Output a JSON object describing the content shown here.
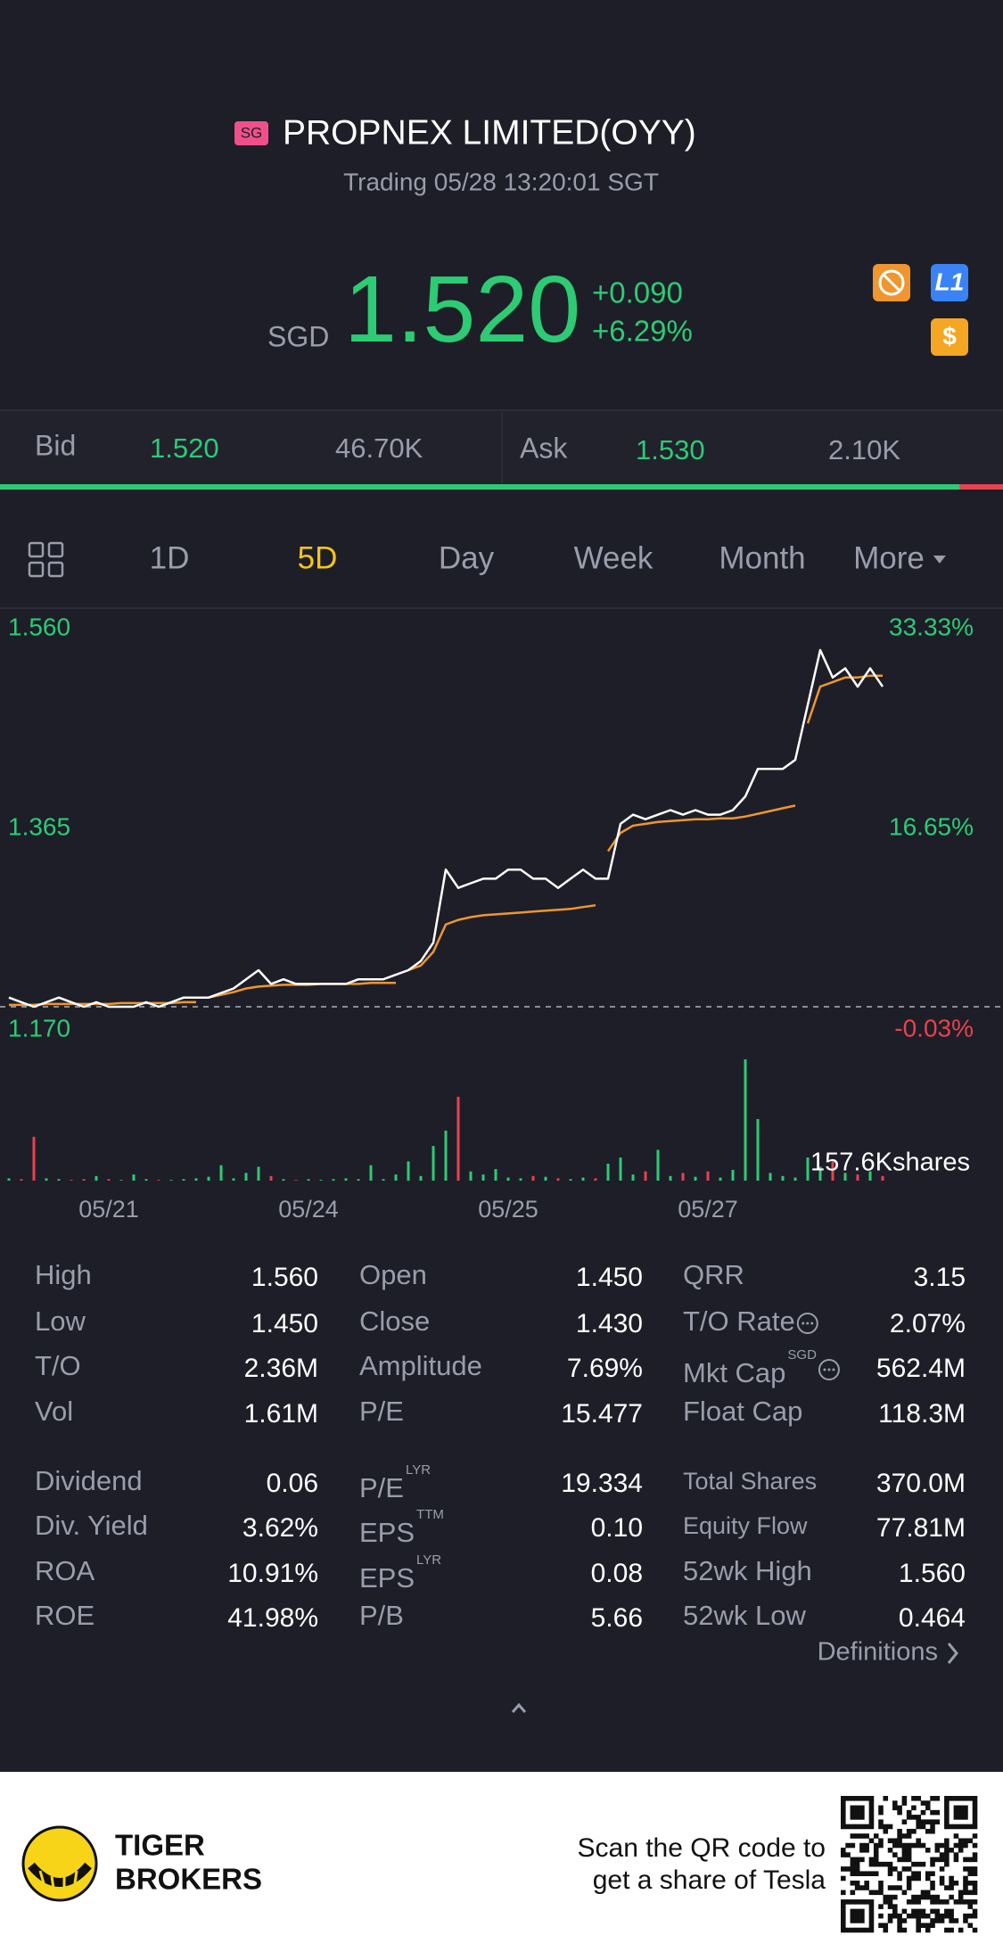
{
  "header": {
    "market": "SG",
    "title": "PROPNEX LIMITED(OYY)",
    "status": "Trading 05/28 13:20:01 SGT"
  },
  "quote": {
    "currency": "SGD",
    "price": "1.520",
    "change": "+0.090",
    "change_pct": "+6.29%"
  },
  "order_book": {
    "bid_label": "Bid",
    "bid": "1.520",
    "bid_size": "46.70K",
    "ask_label": "Ask",
    "ask": "1.530",
    "ask_size": "2.10K"
  },
  "tabs": [
    "1D",
    "5D",
    "Day",
    "Week",
    "Month",
    "More"
  ],
  "active_tab": 1,
  "chart": {
    "ylim": [
      1.17,
      1.56
    ],
    "price_ticks": [
      {
        "value": 1.56,
        "label": "1.560"
      },
      {
        "value": 1.365,
        "label": "1.365"
      },
      {
        "value": 1.17,
        "label": "1.170"
      }
    ],
    "pct_labels": [
      "33.33%",
      "16.65%",
      "-0.03%"
    ],
    "volume_label": "157.6Kshares",
    "days": [
      {
        "date": "05/21",
        "price": [
          1.18,
          1.175,
          1.17,
          1.175,
          1.18,
          1.175,
          1.17,
          1.175,
          1.17,
          1.17,
          1.17,
          1.175,
          1.17,
          1.175,
          1.18,
          1.18
        ],
        "avg": [
          1.172,
          1.172,
          1.172,
          1.173,
          1.173,
          1.173,
          1.173,
          1.173,
          1.173,
          1.174,
          1.174,
          1.174,
          1.174,
          1.174,
          1.175,
          1.175
        ],
        "volume": [
          3,
          2,
          57,
          3,
          2,
          1,
          2,
          6,
          2,
          1,
          8,
          2,
          1,
          1,
          2,
          3
        ]
      },
      {
        "date": "05/24",
        "price": [
          1.18,
          1.185,
          1.19,
          1.2,
          1.21,
          1.195,
          1.2,
          1.195,
          1.195,
          1.195,
          1.195,
          1.195,
          1.2,
          1.2,
          1.2,
          1.205
        ],
        "avg": [
          1.18,
          1.183,
          1.186,
          1.19,
          1.192,
          1.193,
          1.194,
          1.194,
          1.194,
          1.195,
          1.195,
          1.195,
          1.195,
          1.196,
          1.196,
          1.196
        ],
        "volume": [
          5,
          20,
          3,
          10,
          18,
          6,
          2,
          1,
          2,
          1,
          2,
          3,
          2,
          20,
          2,
          8
        ]
      },
      {
        "date": "05/25",
        "price": [
          1.21,
          1.22,
          1.24,
          1.32,
          1.3,
          1.305,
          1.31,
          1.31,
          1.32,
          1.32,
          1.31,
          1.31,
          1.3,
          1.31,
          1.32,
          1.31
        ],
        "avg": [
          1.21,
          1.215,
          1.23,
          1.26,
          1.265,
          1.268,
          1.27,
          1.271,
          1.272,
          1.273,
          1.274,
          1.275,
          1.276,
          1.277,
          1.279,
          1.281
        ],
        "volume": [
          25,
          6,
          45,
          65,
          109,
          12,
          8,
          15,
          4,
          3,
          6,
          5,
          3,
          2,
          4,
          3
        ]
      },
      {
        "date": "05/27",
        "price": [
          1.31,
          1.37,
          1.38,
          1.375,
          1.38,
          1.385,
          1.38,
          1.385,
          1.38,
          1.38,
          1.385,
          1.4,
          1.43,
          1.43,
          1.43,
          1.44
        ],
        "avg": [
          1.34,
          1.36,
          1.368,
          1.37,
          1.372,
          1.373,
          1.374,
          1.375,
          1.375,
          1.376,
          1.376,
          1.378,
          1.381,
          1.384,
          1.387,
          1.39
        ],
        "volume": [
          22,
          30,
          8,
          12,
          40,
          6,
          10,
          5,
          12,
          4,
          14,
          157.6,
          80,
          10,
          6,
          4
        ]
      },
      {
        "price": [
          1.5,
          1.56,
          1.53,
          1.54,
          1.52,
          1.54,
          1.52
        ],
        "avg": [
          1.48,
          1.52,
          1.525,
          1.53,
          1.53,
          1.532,
          1.532
        ],
        "volume": [
          30,
          18,
          25,
          10,
          8,
          12,
          6
        ]
      }
    ]
  },
  "stats": [
    [
      {
        "label": "High",
        "value": "1.560"
      },
      {
        "label": "Open",
        "value": "1.450"
      },
      {
        "label": "QRR",
        "value": "3.15"
      }
    ],
    [
      {
        "label": "Low",
        "value": "1.450"
      },
      {
        "label": "Close",
        "value": "1.430"
      },
      {
        "label": "T/O Rate",
        "info": true,
        "value": "2.07%"
      }
    ],
    [
      {
        "label": "T/O",
        "value": "2.36M"
      },
      {
        "label": "Amplitude",
        "value": "7.69%"
      },
      {
        "label": "Mkt Cap",
        "sup": "SGD",
        "info": true,
        "value": "562.4M"
      }
    ],
    [
      {
        "label": "Vol",
        "value": "1.61M"
      },
      {
        "label": "P/E",
        "value": "15.477"
      },
      {
        "label": "Float Cap",
        "value": "118.3M"
      }
    ],
    [
      {
        "label": "Dividend",
        "value": "0.06"
      },
      {
        "label": "P/E",
        "sup": "LYR",
        "value": "19.334"
      },
      {
        "label": "Total Shares",
        "value": "370.0M"
      }
    ],
    [
      {
        "label": "Div. Yield",
        "value": "3.62%"
      },
      {
        "label": "EPS",
        "sup": "TTM",
        "value": "0.10"
      },
      {
        "label": "Equity Flow",
        "value": "77.81M"
      }
    ],
    [
      {
        "label": "ROA",
        "value": "10.91%"
      },
      {
        "label": "EPS",
        "sup": "LYR",
        "value": "0.08"
      },
      {
        "label": "52wk High",
        "value": "1.560"
      }
    ],
    [
      {
        "label": "ROE",
        "value": "41.98%"
      },
      {
        "label": "P/B",
        "value": "5.66"
      },
      {
        "label": "52wk Low",
        "value": "0.464"
      }
    ]
  ],
  "definitions": "Definitions",
  "footer": {
    "brand": [
      "TIGER",
      "BROKERS"
    ],
    "promo": [
      "Scan the QR code to",
      "get a share of Tesla"
    ]
  }
}
